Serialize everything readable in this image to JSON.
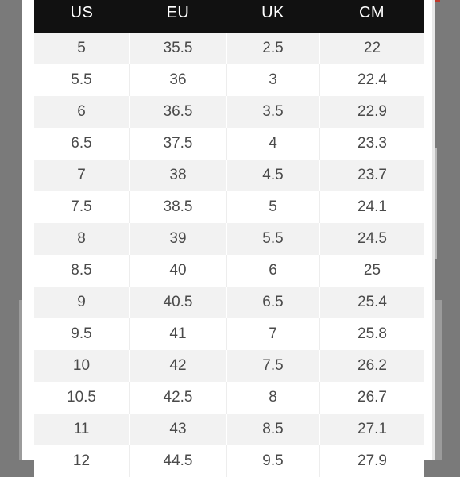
{
  "size_chart": {
    "headers": [
      "US",
      "EU",
      "UK",
      "CM"
    ],
    "rows": [
      [
        "5",
        "35.5",
        "2.5",
        "22"
      ],
      [
        "5.5",
        "36",
        "3",
        "22.4"
      ],
      [
        "6",
        "36.5",
        "3.5",
        "22.9"
      ],
      [
        "6.5",
        "37.5",
        "4",
        "23.3"
      ],
      [
        "7",
        "38",
        "4.5",
        "23.7"
      ],
      [
        "7.5",
        "38.5",
        "5",
        "24.1"
      ],
      [
        "8",
        "39",
        "5.5",
        "24.5"
      ],
      [
        "8.5",
        "40",
        "6",
        "25"
      ],
      [
        "9",
        "40.5",
        "6.5",
        "25.4"
      ],
      [
        "9.5",
        "41",
        "7",
        "25.8"
      ],
      [
        "10",
        "42",
        "7.5",
        "26.2"
      ],
      [
        "10.5",
        "42.5",
        "8",
        "26.7"
      ],
      [
        "11",
        "43",
        "8.5",
        "27.1"
      ],
      [
        "12",
        "44.5",
        "9.5",
        "27.9"
      ]
    ]
  }
}
